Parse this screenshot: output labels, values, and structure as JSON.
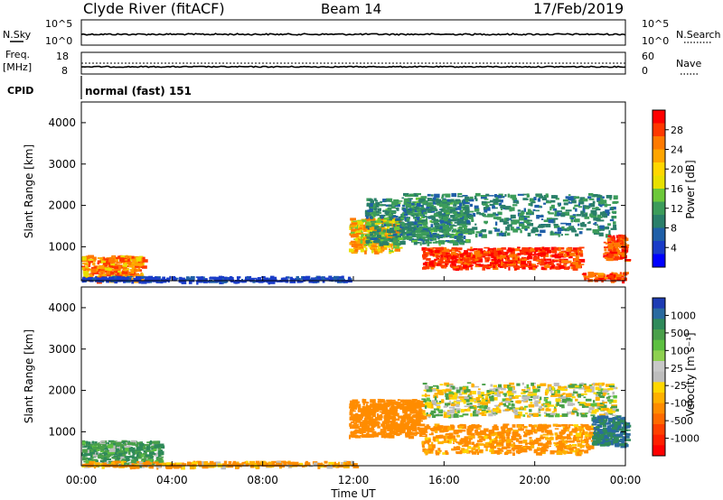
{
  "header": {
    "title": "Clyde River (fitACF)",
    "beam": "Beam 14",
    "date": "17/Feb/2019"
  },
  "nsky_panel": {
    "left_label": "N.Sky",
    "right_label": "N.Search",
    "left_ticks": [
      "10^5",
      "10^0"
    ],
    "right_ticks": [
      "10^5",
      "10^0"
    ]
  },
  "freq_panel": {
    "left_label_top": "Freq.",
    "left_label_bottom": "[MHz]",
    "right_label": "Nave",
    "left_ticks": [
      "18",
      "8"
    ],
    "right_ticks": [
      "60",
      "0"
    ]
  },
  "cpid_panel": {
    "label": "CPID",
    "value": "normal (fast) 151"
  },
  "power_panel": {
    "ylabel": "Slant Range [km]",
    "colorbar_label": "Power [dB]",
    "colorbar_ticks": [
      "28",
      "24",
      "20",
      "16",
      "12",
      "8",
      "4"
    ],
    "colorbar_colors": [
      "#ff0000",
      "#ff3800",
      "#ff7a00",
      "#ffa500",
      "#ffd700",
      "#e8e000",
      "#6cc83a",
      "#3c9c5a",
      "#2a7f6a",
      "#1f5fa8",
      "#1a3cc8",
      "#0000ff"
    ]
  },
  "velocity_panel": {
    "ylabel": "Slant Range [km]",
    "colorbar_label": "Velocity [m s⁻¹]",
    "colorbar_ticks": [
      "1000",
      "500",
      "100",
      "25",
      "-25",
      "-100",
      "-500",
      "-1000"
    ],
    "colorbar_colors": [
      "#1e3cb4",
      "#2a6aa0",
      "#2f8a5a",
      "#4aa04a",
      "#5cc040",
      "#8ed050",
      "#c8c8c8",
      "#bdbdbd",
      "#ffd700",
      "#ffb000",
      "#ff8c00",
      "#ff6a00",
      "#ff4000",
      "#ff2000",
      "#ff0000"
    ]
  },
  "x_axis": {
    "ticks": [
      "00:00",
      "04:00",
      "08:00",
      "12:00",
      "16:00",
      "20:00",
      "00:00"
    ],
    "label": "Time UT"
  },
  "chart_data": [
    {
      "type": "line",
      "name": "N.Sky / N.Search",
      "x_hours": [
        0,
        24
      ],
      "approximate_level": "near 10^4 throughout",
      "yscale": "log"
    },
    {
      "type": "line",
      "name": "Freq / Nave",
      "x_hours": [
        0,
        24
      ],
      "freq_mhz_approx": 10,
      "nave_approx": 30
    },
    {
      "type": "heatmap",
      "name": "Power",
      "xlabel": "Time UT",
      "ylabel": "Slant Range [km]",
      "xlim_hours": [
        0,
        24
      ],
      "ylim_km": [
        180,
        4500
      ],
      "yticks": [
        1000,
        2000,
        3000,
        4000
      ],
      "colorbar": {
        "label": "Power [dB]",
        "ticks": [
          4,
          8,
          12,
          16,
          20,
          24,
          28
        ]
      },
      "regions": [
        {
          "t0": 0.0,
          "t1": 2.7,
          "r0": 200,
          "r1": 800,
          "level": 24
        },
        {
          "t0": 0.0,
          "t1": 11.8,
          "r0": 180,
          "r1": 300,
          "level": 6
        },
        {
          "t0": 11.8,
          "t1": 14.0,
          "r0": 900,
          "r1": 1700,
          "level": 22
        },
        {
          "t0": 12.5,
          "t1": 17.0,
          "r0": 1100,
          "r1": 2200,
          "level": 14
        },
        {
          "t0": 15.0,
          "t1": 22.0,
          "r0": 500,
          "r1": 1000,
          "level": 28
        },
        {
          "t0": 14.0,
          "t1": 23.5,
          "r0": 1300,
          "r1": 2300,
          "level": 13
        },
        {
          "t0": 22.0,
          "t1": 24.0,
          "r0": 200,
          "r1": 400,
          "level": 26
        },
        {
          "t0": 23.0,
          "t1": 24.0,
          "r0": 700,
          "r1": 1300,
          "level": 27
        }
      ]
    },
    {
      "type": "heatmap",
      "name": "Velocity",
      "xlabel": "Time UT",
      "ylabel": "Slant Range [km]",
      "xlim_hours": [
        0,
        24
      ],
      "ylim_km": [
        180,
        4500
      ],
      "yticks": [
        1000,
        2000,
        3000,
        4000
      ],
      "colorbar": {
        "label": "Velocity [m s-1]",
        "ticks": [
          1000,
          500,
          100,
          25,
          -25,
          -100,
          -500,
          -1000
        ]
      },
      "regions": [
        {
          "t0": 0.0,
          "t1": 3.5,
          "r0": 200,
          "r1": 800,
          "level": 100
        },
        {
          "t0": 0.0,
          "t1": 12.0,
          "r0": 180,
          "r1": 300,
          "level": -100
        },
        {
          "t0": 11.8,
          "t1": 15.0,
          "r0": 900,
          "r1": 1800,
          "level": -200
        },
        {
          "t0": 15.0,
          "t1": 22.5,
          "r0": 500,
          "r1": 1200,
          "level": -150
        },
        {
          "t0": 15.0,
          "t1": 23.5,
          "r0": 1400,
          "r1": 2200,
          "level": 0
        },
        {
          "t0": 22.5,
          "t1": 24.0,
          "r0": 700,
          "r1": 1400,
          "level": 300
        }
      ]
    }
  ]
}
